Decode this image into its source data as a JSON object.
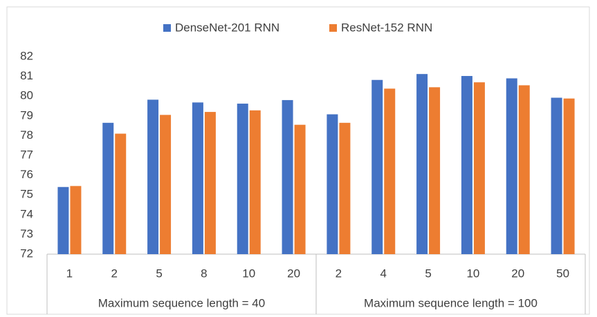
{
  "chart_data": {
    "type": "bar",
    "groups": [
      {
        "label": "Maximum sequence length = 40",
        "categories": [
          "1",
          "2",
          "5",
          "8",
          "10",
          "20"
        ]
      },
      {
        "label": "Maximum sequence length = 100",
        "categories": [
          "2",
          "4",
          "5",
          "10",
          "20",
          "50"
        ]
      }
    ],
    "series": [
      {
        "name": "DenseNet-201 RNN",
        "color": "#4472c4",
        "values": [
          75.4,
          78.65,
          79.82,
          79.68,
          79.62,
          79.8,
          79.08,
          80.82,
          81.12,
          81.02,
          80.9,
          79.92
        ]
      },
      {
        "name": "ResNet-152 RNN",
        "color": "#ed7d31",
        "values": [
          75.45,
          78.1,
          79.05,
          79.2,
          79.28,
          78.55,
          78.65,
          80.38,
          80.45,
          80.7,
          80.55,
          79.88
        ]
      }
    ],
    "ylim": [
      72,
      82
    ],
    "yticks": [
      72,
      73,
      74,
      75,
      76,
      77,
      78,
      79,
      80,
      81,
      82
    ],
    "grid": false,
    "legend": "top"
  }
}
